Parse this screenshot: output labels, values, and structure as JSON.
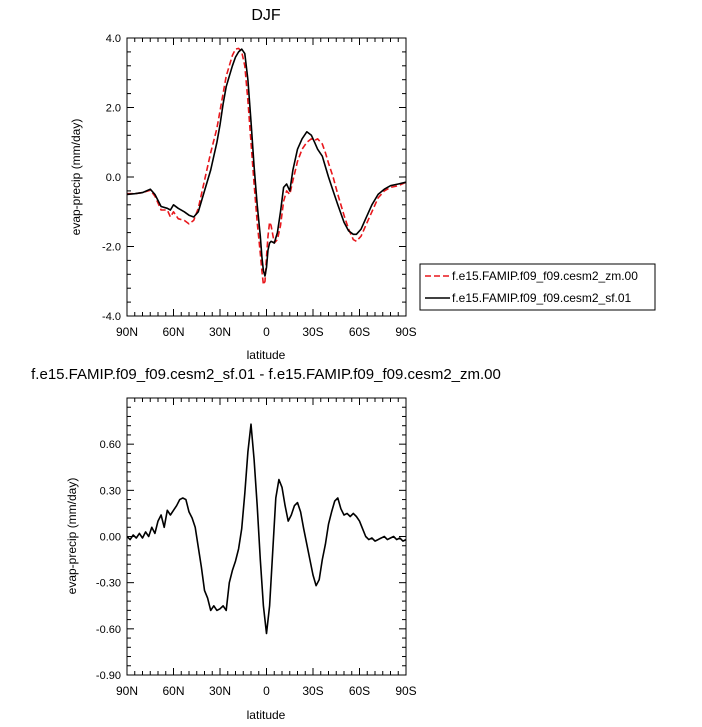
{
  "chart_data": [
    {
      "type": "line",
      "title": "DJF",
      "xlabel": "latitude",
      "ylabel": "evap-precip (mm/day)",
      "xlim": [
        90,
        -90
      ],
      "ylim": [
        -4,
        4
      ],
      "xticks": [
        90,
        60,
        30,
        0,
        -30,
        -60,
        -90
      ],
      "xtick_labels": [
        "90N",
        "60N",
        "30N",
        "0",
        "30S",
        "60S",
        "90S"
      ],
      "yticks": [
        -4,
        -2,
        0,
        2,
        4
      ],
      "ytick_labels": [
        "-4.0",
        "-2.0",
        "0.0",
        "2.0",
        "4.0"
      ],
      "legend_position": "right",
      "series": [
        {
          "name": "f.e15.FAMIP.f09_f09.cesm2_zm.00",
          "color": "#e8171c",
          "dash": "dashed",
          "x": [
            90,
            85,
            80,
            75,
            72,
            68,
            64,
            62,
            60,
            57,
            53,
            50,
            47,
            44,
            40,
            36,
            32,
            30,
            28,
            26,
            24,
            22,
            20,
            18,
            16,
            14,
            12,
            10,
            8,
            6,
            4,
            3,
            2,
            1,
            0,
            -1,
            -2,
            -3,
            -5,
            -7,
            -9,
            -11,
            -13,
            -15,
            -17,
            -20,
            -23,
            -26,
            -29,
            -31,
            -33,
            -36,
            -38,
            -40,
            -43,
            -46,
            -50,
            -53,
            -56,
            -58,
            -61,
            -64,
            -68,
            -72,
            -76,
            -80,
            -85,
            -90
          ],
          "y": [
            -0.48,
            -0.48,
            -0.45,
            -0.38,
            -0.55,
            -0.95,
            -0.95,
            -1.15,
            -1.0,
            -1.2,
            -1.25,
            -1.35,
            -1.25,
            -0.9,
            -0.1,
            0.7,
            1.4,
            1.9,
            2.4,
            2.9,
            3.2,
            3.5,
            3.68,
            3.7,
            3.6,
            3.2,
            2.2,
            1.0,
            -0.2,
            -1.3,
            -2.2,
            -2.7,
            -3.1,
            -3.0,
            -2.3,
            -1.7,
            -1.3,
            -1.4,
            -1.9,
            -1.8,
            -1.4,
            -0.7,
            -0.4,
            -0.5,
            -0.1,
            0.45,
            0.8,
            1.0,
            1.1,
            1.05,
            1.1,
            0.95,
            0.7,
            0.4,
            0.0,
            -0.5,
            -1.1,
            -1.5,
            -1.8,
            -1.85,
            -1.7,
            -1.4,
            -1.0,
            -0.6,
            -0.4,
            -0.3,
            -0.25,
            -0.15
          ]
        },
        {
          "name": "f.e15.FAMIP.f09_f09.cesm2_sf.01",
          "color": "#000000",
          "dash": "solid",
          "x": [
            90,
            85,
            80,
            75,
            72,
            68,
            64,
            62,
            60,
            57,
            53,
            50,
            47,
            44,
            40,
            36,
            32,
            30,
            28,
            26,
            24,
            22,
            20,
            18,
            16,
            14,
            12,
            10,
            8,
            6,
            4,
            3,
            2,
            1,
            0,
            -1,
            -2,
            -3,
            -5,
            -7,
            -9,
            -11,
            -13,
            -15,
            -17,
            -20,
            -23,
            -26,
            -29,
            -31,
            -33,
            -36,
            -38,
            -40,
            -43,
            -46,
            -50,
            -53,
            -56,
            -58,
            -61,
            -64,
            -68,
            -72,
            -76,
            -80,
            -85,
            -90
          ],
          "y": [
            -0.5,
            -0.48,
            -0.45,
            -0.35,
            -0.5,
            -0.85,
            -0.9,
            -0.95,
            -0.8,
            -0.9,
            -1.0,
            -1.1,
            -1.15,
            -1.0,
            -0.4,
            0.2,
            1.0,
            1.5,
            2.1,
            2.6,
            2.9,
            3.2,
            3.45,
            3.6,
            3.68,
            3.55,
            2.8,
            1.6,
            0.3,
            -0.8,
            -1.7,
            -2.3,
            -2.7,
            -2.85,
            -2.6,
            -2.1,
            -1.9,
            -1.85,
            -1.9,
            -1.6,
            -1.0,
            -0.3,
            -0.2,
            -0.4,
            0.2,
            0.8,
            1.1,
            1.3,
            1.2,
            1.0,
            0.8,
            0.6,
            0.3,
            0.0,
            -0.4,
            -0.8,
            -1.3,
            -1.55,
            -1.65,
            -1.65,
            -1.5,
            -1.2,
            -0.8,
            -0.5,
            -0.35,
            -0.25,
            -0.2,
            -0.15
          ]
        }
      ]
    },
    {
      "type": "line",
      "title": "f.e15.FAMIP.f09_f09.cesm2_sf.01 - f.e15.FAMIP.f09_f09.cesm2_zm.00",
      "xlabel": "latitude",
      "ylabel": "evap-precip (mm/day)",
      "xlim": [
        90,
        -90
      ],
      "ylim": [
        -0.9,
        0.9
      ],
      "xticks": [
        90,
        60,
        30,
        0,
        -30,
        -60,
        -90
      ],
      "xtick_labels": [
        "90N",
        "60N",
        "30N",
        "0",
        "30S",
        "60S",
        "90S"
      ],
      "yticks": [
        -0.9,
        -0.6,
        -0.3,
        0,
        0.3,
        0.6
      ],
      "ytick_labels": [
        "-0.90",
        "-0.60",
        "-0.30",
        "0.00",
        "0.30",
        "0.60"
      ],
      "series": [
        {
          "color": "#000000",
          "dash": "solid",
          "x": [
            90,
            88,
            86,
            84,
            82,
            80,
            78,
            76,
            74,
            72,
            70,
            68,
            66,
            64,
            62,
            60,
            58,
            56,
            54,
            52,
            50,
            48,
            46,
            44,
            42,
            40,
            38,
            36,
            34,
            32,
            30,
            28,
            26,
            24,
            22,
            20,
            18,
            16,
            14,
            12,
            10,
            8,
            6,
            4,
            2,
            0,
            -2,
            -4,
            -6,
            -8,
            -10,
            -12,
            -14,
            -16,
            -18,
            -20,
            -22,
            -24,
            -26,
            -28,
            -30,
            -32,
            -34,
            -36,
            -38,
            -40,
            -42,
            -44,
            -46,
            -48,
            -50,
            -52,
            -54,
            -56,
            -58,
            -60,
            -62,
            -64,
            -66,
            -68,
            -70,
            -72,
            -74,
            -76,
            -78,
            -80,
            -82,
            -84,
            -86,
            -88,
            -90
          ],
          "y": [
            0.0,
            -0.02,
            0.01,
            -0.01,
            0.02,
            -0.01,
            0.03,
            0.0,
            0.06,
            0.02,
            0.1,
            0.14,
            0.06,
            0.17,
            0.14,
            0.17,
            0.2,
            0.24,
            0.25,
            0.24,
            0.16,
            0.12,
            0.06,
            -0.07,
            -0.2,
            -0.35,
            -0.4,
            -0.48,
            -0.45,
            -0.48,
            -0.47,
            -0.45,
            -0.48,
            -0.3,
            -0.22,
            -0.16,
            -0.08,
            0.05,
            0.28,
            0.55,
            0.73,
            0.5,
            0.2,
            -0.15,
            -0.45,
            -0.63,
            -0.45,
            -0.1,
            0.25,
            0.37,
            0.32,
            0.2,
            0.1,
            0.14,
            0.2,
            0.22,
            0.16,
            0.05,
            -0.05,
            -0.15,
            -0.25,
            -0.32,
            -0.28,
            -0.15,
            -0.05,
            0.08,
            0.16,
            0.23,
            0.25,
            0.18,
            0.14,
            0.15,
            0.13,
            0.15,
            0.13,
            0.1,
            0.05,
            0.0,
            -0.02,
            -0.01,
            -0.03,
            -0.02,
            -0.01,
            0.0,
            -0.02,
            -0.01,
            0.0,
            -0.02,
            -0.01,
            -0.03,
            -0.02
          ]
        }
      ]
    }
  ]
}
